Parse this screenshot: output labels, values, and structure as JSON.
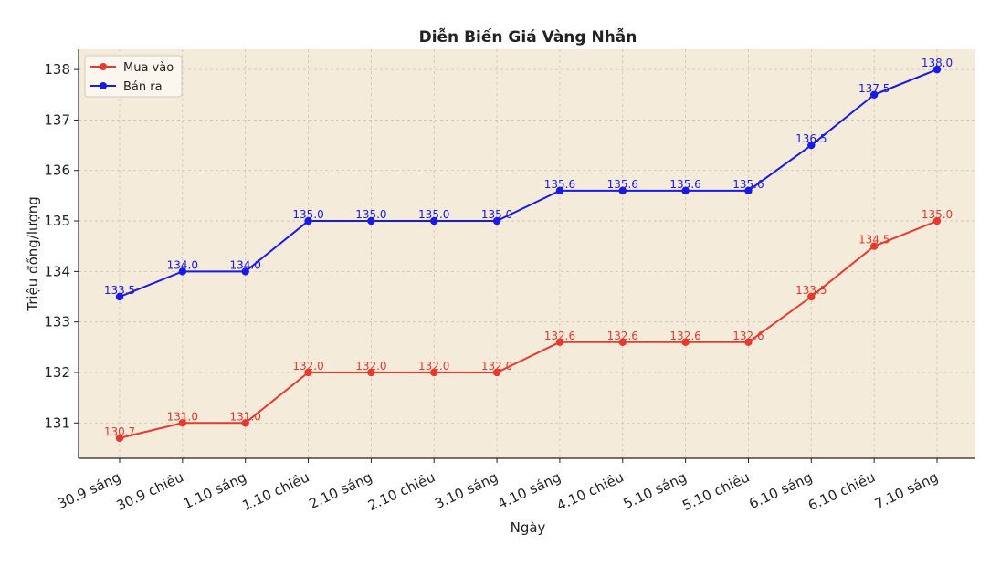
{
  "chart_data": {
    "type": "line",
    "title": "Diễn Biến Giá Vàng Nhẫn",
    "xlabel": "Ngày",
    "ylabel": "Triệu đồng/lượng",
    "categories": [
      "30.9 sáng",
      "30.9 chiều",
      "1.10 sáng",
      "1.10 chiều",
      "2.10 sáng",
      "2.10 chiều",
      "3.10 sáng",
      "4.10 sáng",
      "4.10 chiều",
      "5.10 sáng",
      "5.10 chiều",
      "6.10 sáng",
      "6.10 chiều",
      "7.10 sáng"
    ],
    "series": [
      {
        "name": "Mua vào",
        "color": "#e8392e",
        "values": [
          130.7,
          131.0,
          131.0,
          132.0,
          132.0,
          132.0,
          132.0,
          132.6,
          132.6,
          132.6,
          132.6,
          133.5,
          134.5,
          135.0
        ],
        "labels": [
          "130.7",
          "131.0",
          "131.0",
          "132.0",
          "132.0",
          "132.0",
          "132.0",
          "132.6",
          "132.6",
          "132.6",
          "132.6",
          "133.5",
          "134.5",
          "135.0"
        ]
      },
      {
        "name": "Bán ra",
        "color": "#1a1ae6",
        "values": [
          133.5,
          134.0,
          134.0,
          135.0,
          135.0,
          135.0,
          135.0,
          135.6,
          135.6,
          135.6,
          135.6,
          136.5,
          137.5,
          138.0
        ],
        "labels": [
          "133.5",
          "134.0",
          "134.0",
          "135.0",
          "135.0",
          "135.0",
          "135.0",
          "135.6",
          "135.6",
          "135.6",
          "135.6",
          "136.5",
          "137.5",
          "138.0"
        ]
      }
    ],
    "yticks": [
      "131",
      "132",
      "133",
      "134",
      "135",
      "136",
      "137",
      "138"
    ],
    "ylim": [
      130.3,
      138.4
    ],
    "grid": true,
    "legend_position": "top-left",
    "plot_background": "#f5ebda"
  }
}
